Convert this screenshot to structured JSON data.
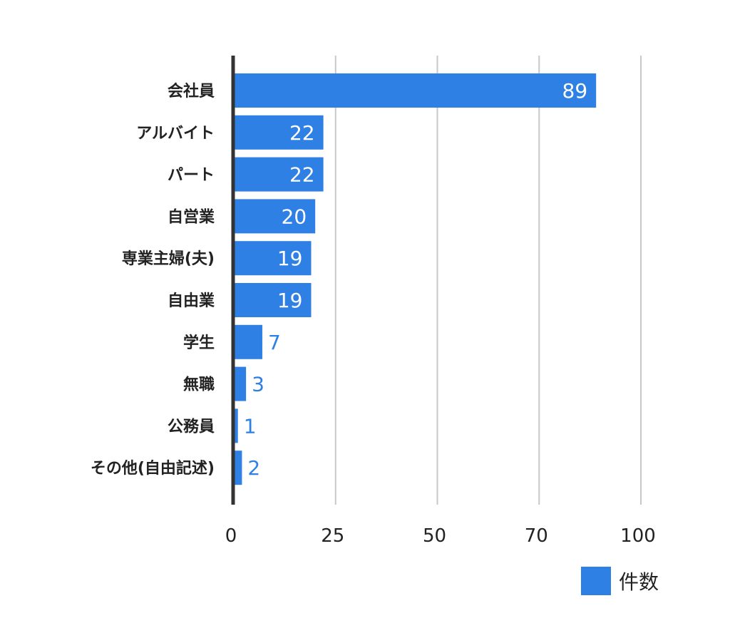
{
  "chart_data": {
    "type": "bar",
    "orientation": "horizontal",
    "categories": [
      "会社員",
      "アルバイト",
      "パート",
      "自営業",
      "専業主婦(夫)",
      "自由業",
      "学生",
      "無職",
      "公務員",
      "その他(自由記述)"
    ],
    "series": [
      {
        "name": "件数",
        "values": [
          89,
          22,
          22,
          20,
          19,
          19,
          7,
          3,
          1,
          2
        ]
      }
    ],
    "xticks": [
      "0",
      "25",
      "50",
      "70",
      "100"
    ],
    "xlim": [
      0,
      100
    ],
    "grid": true,
    "legend_position": "bottom-right",
    "data_labels": [
      "89",
      "22",
      "22",
      "20",
      "19",
      "19",
      "7",
      "3",
      "1",
      "2"
    ]
  },
  "colors": {
    "bar": "#2f80e4",
    "grid": "#c8c8c8",
    "axis": "#333333",
    "label_inside": "#ffffff",
    "label_outside": "#2f80e4"
  }
}
